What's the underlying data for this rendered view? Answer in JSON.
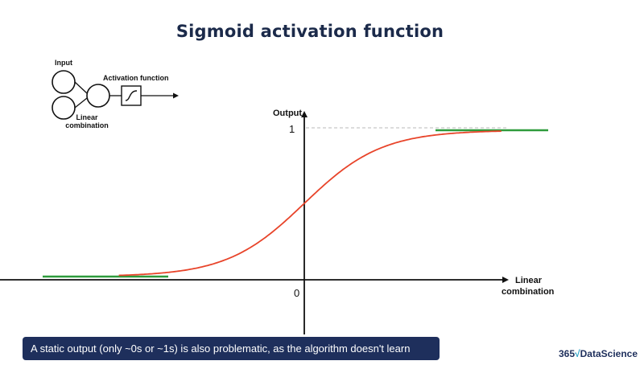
{
  "title": "Sigmoid activation function",
  "diagram": {
    "input_label": "Input",
    "activation_label": "Activation function",
    "linear_label_line1": "Linear",
    "linear_label_line2": "combination"
  },
  "chart_data": {
    "type": "line",
    "function": "sigmoid",
    "ylabel": "Output",
    "xlabel_line1": "Linear",
    "xlabel_line2": "combination",
    "y_tick_labels": [
      "1",
      "0"
    ],
    "ylim": [
      0,
      1
    ],
    "series": [
      {
        "x": [
          -5,
          -4,
          -3,
          -2,
          -1,
          0,
          1,
          2,
          3,
          4,
          5
        ],
        "y": [
          0.007,
          0.018,
          0.047,
          0.119,
          0.269,
          0.5,
          0.731,
          0.881,
          0.953,
          0.982,
          0.993
        ],
        "color": "#e8442a"
      }
    ],
    "plateaus": [
      {
        "level": 0,
        "color": "#2e9b3c"
      },
      {
        "level": 1,
        "color": "#2e9b3c"
      }
    ],
    "reference_line": {
      "level": 1,
      "style": "dashed"
    }
  },
  "caption": "A static output (only ~0s or ~1s) is also problematic, as the algorithm doesn't learn",
  "brand": {
    "prefix": "365",
    "symbol": "√",
    "name": "DataScience"
  },
  "colors": {
    "title": "#1b2a4a",
    "curve": "#e8442a",
    "plateau": "#2e9b3c",
    "caption_bg": "#1e2f5c",
    "caption_text": "#ffffff"
  }
}
